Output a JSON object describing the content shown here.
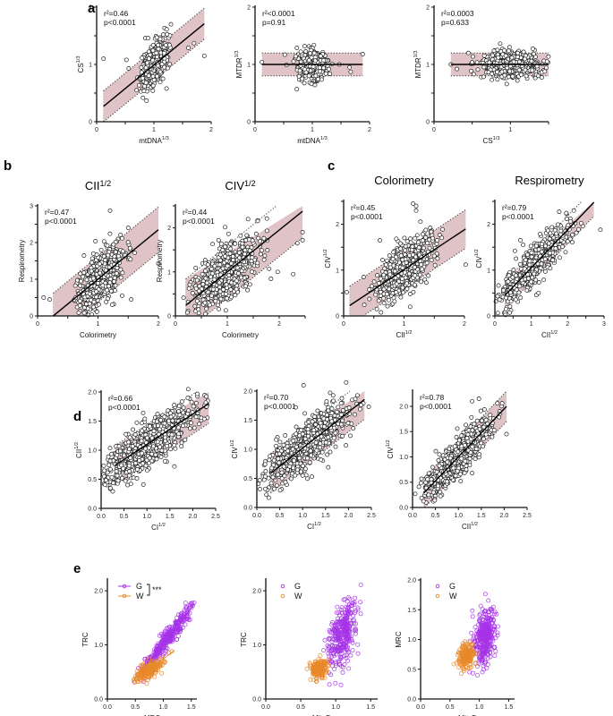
{
  "figure": {
    "colors": {
      "band": "#d9b8bc",
      "band_edge": "#333333",
      "point_stroke": "#222222",
      "point_fill": "#ffffff",
      "G": "#a633e8",
      "W": "#e8892a",
      "axis": "#111111"
    }
  },
  "chart_data": [
    {
      "id": "a1",
      "panel": "a",
      "type": "scatter",
      "title": "",
      "xlabel": "mtDNA",
      "xsup": "1/3",
      "ylabel": "CS",
      "ysup": "1/3",
      "xlim": [
        0,
        2
      ],
      "ylim": [
        0,
        2
      ],
      "xticks": [
        0,
        0.5,
        1,
        1.5,
        2
      ],
      "xticklabels": [
        "0",
        "",
        "1",
        "",
        "2"
      ],
      "yticks": [
        0,
        0.5,
        1,
        1.5,
        2
      ],
      "yticklabels": [
        "0",
        "",
        "1",
        "",
        "2"
      ],
      "stat_r2": "r²=0.46",
      "stat_p": "p<0.0001",
      "fit": {
        "slope": 0.82,
        "intercept": 0.17,
        "xrange": [
          0.12,
          1.88
        ],
        "band": 0.27
      },
      "cloud": {
        "n": 520,
        "cx": 1.0,
        "cy": 1.0,
        "sx": 0.11,
        "sy": 0.2,
        "rho": 0.55
      },
      "outliers": [
        [
          0.12,
          1.1
        ],
        [
          0.52,
          1.08
        ],
        [
          0.56,
          0.93
        ],
        [
          1.88,
          1.15
        ],
        [
          1.6,
          1.29
        ],
        [
          1.7,
          1.37
        ],
        [
          1.22,
          0.58
        ],
        [
          0.85,
          1.46
        ],
        [
          0.9,
          1.46
        ],
        [
          1.05,
          1.47
        ]
      ]
    },
    {
      "id": "a2",
      "panel": "",
      "type": "scatter",
      "title": "",
      "xlabel": "mtDNA",
      "xsup": "1/3",
      "ylabel": "MTDR",
      "ysup": "1/3",
      "xlim": [
        0,
        2
      ],
      "ylim": [
        0,
        2
      ],
      "xticks": [
        0,
        0.5,
        1,
        1.5,
        2
      ],
      "xticklabels": [
        "0",
        "",
        "1",
        "",
        "2"
      ],
      "yticks": [
        0,
        0.5,
        1,
        1.5,
        2
      ],
      "yticklabels": [
        "0",
        "",
        "1",
        "",
        "2"
      ],
      "stat_r2": "r²<0.0001",
      "stat_p": "p=0.91",
      "fit": {
        "slope": 0.0,
        "intercept": 1.0,
        "xrange": [
          0.12,
          1.88
        ],
        "band": 0.2
      },
      "cloud": {
        "n": 520,
        "cx": 1.0,
        "cy": 1.0,
        "sx": 0.11,
        "sy": 0.12,
        "rho": 0.0
      },
      "outliers": [
        [
          0.12,
          1.04
        ],
        [
          0.52,
          1.17
        ],
        [
          0.55,
          0.99
        ],
        [
          1.88,
          1.18
        ],
        [
          1.65,
          0.95
        ],
        [
          1.67,
          0.87
        ],
        [
          1.47,
          1.0
        ]
      ]
    },
    {
      "id": "a3",
      "panel": "",
      "type": "scatter",
      "title": "",
      "xlabel": "CS",
      "xsup": "1/3",
      "ylabel": "MTDR",
      "ysup": "1/3",
      "xlim": [
        0,
        1.5
      ],
      "ylim": [
        0,
        2
      ],
      "xticks": [
        0,
        0.5,
        1,
        1.5
      ],
      "xticklabels": [
        "0",
        "",
        "1",
        ""
      ],
      "yticks": [
        0,
        0.5,
        1,
        1.5,
        2
      ],
      "yticklabels": [
        "0",
        "",
        "1",
        "",
        "2"
      ],
      "stat_r2": "r²=0.0003",
      "stat_p": "p=0.633",
      "fit": {
        "slope": 0.0,
        "intercept": 1.0,
        "xrange": [
          0.22,
          1.5
        ],
        "band": 0.2
      },
      "cloud": {
        "n": 650,
        "cx": 1.0,
        "cy": 1.0,
        "sx": 0.18,
        "sy": 0.11,
        "rho": 0.0
      },
      "outliers": [
        [
          0.22,
          1.0
        ],
        [
          0.3,
          0.92
        ],
        [
          0.45,
          1.2
        ],
        [
          1.48,
          1.05
        ],
        [
          1.47,
          0.94
        ],
        [
          1.45,
          0.88
        ]
      ]
    },
    {
      "id": "b1",
      "panel": "b",
      "type": "scatter",
      "title": "CII",
      "tsup": "1/2",
      "xlabel": "Colorimetry",
      "xsup": "",
      "ylabel": "Respirometry",
      "ysup": "",
      "xlim": [
        0,
        2
      ],
      "ylim": [
        0,
        3
      ],
      "xticks": [
        0,
        0.5,
        1,
        1.5,
        2
      ],
      "xticklabels": [
        "0",
        "",
        "1",
        "",
        "2"
      ],
      "yticks": [
        0,
        0.5,
        1,
        1.5,
        2,
        2.5,
        3
      ],
      "yticklabels": [
        "0",
        "",
        "1",
        "",
        "2",
        "",
        "3"
      ],
      "stat_r2": "r²=0.47",
      "stat_p": "p<0.0001",
      "fit": {
        "slope": 1.35,
        "intercept": -0.35,
        "xrange": [
          0.26,
          2.0
        ],
        "band": 0.62
      },
      "cloud": {
        "n": 620,
        "cx": 1.05,
        "cy": 1.05,
        "sx": 0.18,
        "sy": 0.42,
        "rho": 0.6
      },
      "outliers": [
        [
          0.1,
          0.5
        ],
        [
          1.2,
          2.87
        ],
        [
          2.0,
          1.43
        ],
        [
          1.5,
          2.4
        ],
        [
          1.4,
          0.55
        ],
        [
          1.55,
          0.45
        ],
        [
          0.2,
          0.45
        ]
      ]
    },
    {
      "id": "b2",
      "panel": "",
      "type": "scatter",
      "title": "CIV",
      "tsup": "1/2",
      "xlabel": "Colorimetry",
      "xsup": "",
      "ylabel": "Respirometry",
      "ysup": "",
      "xlim": [
        0,
        2.5
      ],
      "ylim": [
        0,
        2.5
      ],
      "xticks": [
        0,
        0.5,
        1,
        1.5,
        2,
        2.5
      ],
      "xticklabels": [
        "0",
        "",
        "1",
        "",
        "2",
        ""
      ],
      "yticks": [
        0,
        0.5,
        1,
        1.5,
        2,
        2.5
      ],
      "yticklabels": [
        "0",
        "",
        "1",
        "",
        "2",
        ""
      ],
      "stat_r2": "r²=0.44",
      "stat_p": "p<0.0001",
      "fit": {
        "slope": 0.95,
        "intercept": 0.05,
        "xrange": [
          0.2,
          2.45
        ],
        "band": 0.6
      },
      "cloud": {
        "n": 640,
        "cx": 0.95,
        "cy": 0.95,
        "sx": 0.3,
        "sy": 0.38,
        "rho": 0.62
      },
      "outliers": [
        [
          2.27,
          0.95
        ],
        [
          1.97,
          1.0
        ],
        [
          2.45,
          1.9
        ],
        [
          2.45,
          1.72
        ],
        [
          2.35,
          1.65
        ],
        [
          1.4,
          2.2
        ]
      ]
    },
    {
      "id": "c1",
      "panel": "c",
      "type": "scatter",
      "title": "Colorimetry",
      "tsup": "",
      "xlabel": "CII",
      "xsup": "1/2",
      "ylabel": "CIV",
      "ysup": "1/2",
      "xlim": [
        0,
        2
      ],
      "ylim": [
        0,
        2.5
      ],
      "xticks": [
        0,
        0.5,
        1,
        1.5,
        2
      ],
      "xticklabels": [
        "0",
        "",
        "1",
        "",
        "2"
      ],
      "yticks": [
        0,
        0.5,
        1,
        1.5,
        2,
        2.5
      ],
      "yticklabels": [
        "0",
        "",
        "1",
        "",
        "2",
        ""
      ],
      "stat_r2": "r²=0.45",
      "stat_p": "p<0.0001",
      "fit": {
        "slope": 0.87,
        "intercept": 0.14,
        "xrange": [
          0.1,
          2.02
        ],
        "band": 0.42
      },
      "cloud": {
        "n": 620,
        "cx": 1.0,
        "cy": 1.0,
        "sx": 0.23,
        "sy": 0.32,
        "rho": 0.65
      },
      "outliers": [
        [
          2.02,
          1.12
        ],
        [
          1.15,
          2.45
        ],
        [
          1.2,
          2.4
        ],
        [
          1.2,
          2.3
        ],
        [
          0.6,
          1.65
        ],
        [
          1.1,
          0.2
        ],
        [
          0.33,
          0.85
        ],
        [
          0.05,
          0.52
        ]
      ]
    },
    {
      "id": "c2",
      "panel": "",
      "type": "scatter",
      "title": "Respirometry",
      "tsup": "",
      "xlabel": "CII",
      "xsup": "1/2",
      "ylabel": "CIV",
      "ysup": "1/2",
      "xlim": [
        0,
        3
      ],
      "ylim": [
        0,
        2.5
      ],
      "xticks": [
        0,
        0.5,
        1,
        1.5,
        2,
        2.5,
        3
      ],
      "xticklabels": [
        "0",
        "",
        "1",
        "",
        "2",
        "",
        "3"
      ],
      "yticks": [
        0,
        0.5,
        1,
        1.5,
        2,
        2.5
      ],
      "yticklabels": [
        "0",
        "",
        "1",
        "",
        "2",
        ""
      ],
      "stat_r2": "r²=0.79",
      "stat_p": "p<0.0001",
      "fit": {
        "slope": 0.83,
        "intercept": 0.22,
        "xrange": [
          0.28,
          2.72
        ],
        "band": 0.3
      },
      "cloud": {
        "n": 600,
        "cx": 1.05,
        "cy": 1.1,
        "sx": 0.45,
        "sy": 0.42,
        "rho": 0.88
      },
      "outliers": [
        [
          2.9,
          1.88
        ],
        [
          1.2,
          0.5
        ],
        [
          0.7,
          1.65
        ],
        [
          0.55,
          1.42
        ]
      ]
    },
    {
      "id": "d1",
      "panel": "d",
      "type": "scatter",
      "title": "",
      "xlabel": "CI",
      "xsup": "1/2",
      "ylabel": "CII",
      "ysup": "1/2",
      "xlim": [
        0,
        2.5
      ],
      "ylim": [
        0,
        2.0
      ],
      "xticks": [
        0,
        0.5,
        1,
        1.5,
        2,
        2.5
      ],
      "xticklabels": [
        "0.0",
        "0.5",
        "1.0",
        "1.5",
        "2.0",
        "2.5"
      ],
      "yticks": [
        0,
        0.5,
        1,
        1.5,
        2
      ],
      "yticklabels": [
        "0.0",
        "0.5",
        "1.0",
        "1.5",
        "2.0"
      ],
      "stat_r2": "r²=0.66",
      "stat_p": "p<0.0001",
      "fit": {
        "slope": 0.52,
        "intercept": 0.58,
        "xrange": [
          0.3,
          2.35
        ],
        "band": 0.34
      },
      "cloud": {
        "n": 700,
        "cx": 1.05,
        "cy": 1.1,
        "sx": 0.5,
        "sy": 0.33,
        "rho": 0.81
      },
      "outliers": [
        [
          1.9,
          2.05
        ],
        [
          0.65,
          0.42
        ],
        [
          1.6,
          0.72
        ],
        [
          2.3,
          1.75
        ]
      ]
    },
    {
      "id": "d2",
      "panel": "",
      "type": "scatter",
      "title": "",
      "xlabel": "CI",
      "xsup": "1/2",
      "ylabel": "CIV",
      "ysup": "1/2",
      "xlim": [
        0,
        2.5
      ],
      "ylim": [
        0,
        2.0
      ],
      "xticks": [
        0,
        0.5,
        1,
        1.5,
        2,
        2.5
      ],
      "xticklabels": [
        "0.0",
        "0.5",
        "1.0",
        "1.5",
        "2.0",
        "2.5"
      ],
      "yticks": [
        0,
        0.5,
        1,
        1.5,
        2
      ],
      "yticklabels": [
        "0.0",
        "0.5",
        "1.0",
        "1.5",
        "2.0"
      ],
      "stat_r2": "r²=0.70",
      "stat_p": "p<0.0001",
      "fit": {
        "slope": 0.62,
        "intercept": 0.4,
        "xrange": [
          0.3,
          2.35
        ],
        "band": 0.34
      },
      "cloud": {
        "n": 700,
        "cx": 1.1,
        "cy": 1.08,
        "sx": 0.5,
        "sy": 0.35,
        "rho": 0.84
      },
      "outliers": [
        [
          1.02,
          2.1
        ],
        [
          1.95,
          2.15
        ],
        [
          1.6,
          1.97
        ],
        [
          0.85,
          1.72
        ],
        [
          1.4,
          0.82
        ],
        [
          1.0,
          0.55
        ]
      ]
    },
    {
      "id": "d3",
      "panel": "",
      "type": "scatter",
      "title": "",
      "xlabel": "CII",
      "xsup": "1/2",
      "ylabel": "CIV",
      "ysup": "1/2",
      "xlim": [
        0,
        2.5
      ],
      "ylim": [
        0,
        2.3
      ],
      "xticks": [
        0,
        0.5,
        1,
        1.5,
        2,
        2.5
      ],
      "xticklabels": [
        "0.0",
        "0.5",
        "1.0",
        "1.5",
        "2.0",
        "2.5"
      ],
      "yticks": [
        0,
        0.5,
        1,
        1.5,
        2
      ],
      "yticklabels": [
        "0.0",
        "0.5",
        "1.0",
        "1.5",
        "2.0"
      ],
      "stat_r2": "r²=0.78",
      "stat_p": "p<0.0001",
      "fit": {
        "slope": 0.95,
        "intercept": 0.05,
        "xrange": [
          0.25,
          2.05
        ],
        "band": 0.3
      },
      "cloud": {
        "n": 700,
        "cx": 1.0,
        "cy": 1.0,
        "sx": 0.36,
        "sy": 0.38,
        "rho": 0.88
      },
      "outliers": [
        [
          2.05,
          1.45
        ],
        [
          1.3,
          2.1
        ],
        [
          1.45,
          2.15
        ],
        [
          0.35,
          0.25
        ],
        [
          1.05,
          0.52
        ],
        [
          1.3,
          0.68
        ]
      ]
    },
    {
      "id": "e1",
      "panel": "e",
      "type": "scatter",
      "title": "",
      "xlabel": "MRC",
      "xsup": "",
      "ylabel": "TRC",
      "ysup": "",
      "xlim": [
        0,
        1.6
      ],
      "ylim": [
        0,
        2.2
      ],
      "xticks": [
        0,
        0.5,
        1,
        1.5
      ],
      "xticklabels": [
        "0.0",
        "0.5",
        "1.0",
        "1.5"
      ],
      "yticks": [
        0,
        1,
        2
      ],
      "yticklabels": [
        "0.0",
        "1.0",
        "2.0"
      ],
      "legend": {
        "items": [
          "G",
          "W"
        ],
        "lines": true,
        "sig": "***",
        "position": "top-left"
      },
      "groups": [
        {
          "name": "G",
          "n": 330,
          "cx": 1.1,
          "cy": 1.15,
          "sx": 0.24,
          "sy": 0.33,
          "rho": 0.96,
          "fit": {
            "slope": 1.3,
            "intercept": -0.27,
            "xrange": [
              0.55,
              1.55
            ]
          }
        },
        {
          "name": "W",
          "n": 180,
          "cx": 0.72,
          "cy": 0.52,
          "sx": 0.12,
          "sy": 0.1,
          "rho": 0.7,
          "fit": {
            "slope": 0.8,
            "intercept": -0.06,
            "xrange": [
              0.55,
              1.2
            ]
          }
        }
      ]
    },
    {
      "id": "e2",
      "panel": "",
      "type": "scatter",
      "title": "",
      "xlabel": "MitoD",
      "xsup": "",
      "ylabel": "TRC",
      "ysup": "",
      "xlim": [
        0,
        1.6
      ],
      "ylim": [
        0,
        2.2
      ],
      "xticks": [
        0,
        0.5,
        1,
        1.5
      ],
      "xticklabels": [
        "0.0",
        "0.5",
        "1.0",
        "1.5"
      ],
      "yticks": [
        0,
        1,
        2
      ],
      "yticklabels": [
        "0.0",
        "1.0",
        "2.0"
      ],
      "legend": {
        "items": [
          "G",
          "W"
        ],
        "lines": false,
        "sig": "",
        "position": "top-left"
      },
      "groups": [
        {
          "name": "G",
          "n": 330,
          "cx": 1.1,
          "cy": 1.2,
          "sx": 0.1,
          "sy": 0.32,
          "rho": 0.5
        },
        {
          "name": "W",
          "n": 180,
          "cx": 0.76,
          "cy": 0.55,
          "sx": 0.06,
          "sy": 0.09,
          "rho": 0.2
        }
      ]
    },
    {
      "id": "e3",
      "panel": "",
      "type": "scatter",
      "title": "",
      "xlabel": "MitoD",
      "xsup": "",
      "ylabel": "MRC",
      "ysup": "",
      "xlim": [
        0,
        1.6
      ],
      "ylim": [
        0,
        2.0
      ],
      "xticks": [
        0,
        0.5,
        1,
        1.5
      ],
      "xticklabels": [
        "0.0",
        "0.5",
        "1.0",
        "1.5"
      ],
      "yticks": [
        0,
        0.5,
        1,
        1.5,
        2
      ],
      "yticklabels": [
        "0.0",
        "0.5",
        "1.0",
        "1.5",
        "2.0"
      ],
      "legend": {
        "items": [
          "G",
          "W"
        ],
        "lines": false,
        "sig": "",
        "position": "top-left"
      },
      "groups": [
        {
          "name": "G",
          "n": 330,
          "cx": 1.1,
          "cy": 1.05,
          "sx": 0.09,
          "sy": 0.25,
          "rho": 0.3
        },
        {
          "name": "W",
          "n": 180,
          "cx": 0.77,
          "cy": 0.72,
          "sx": 0.07,
          "sy": 0.1,
          "rho": 0.1
        }
      ]
    }
  ]
}
